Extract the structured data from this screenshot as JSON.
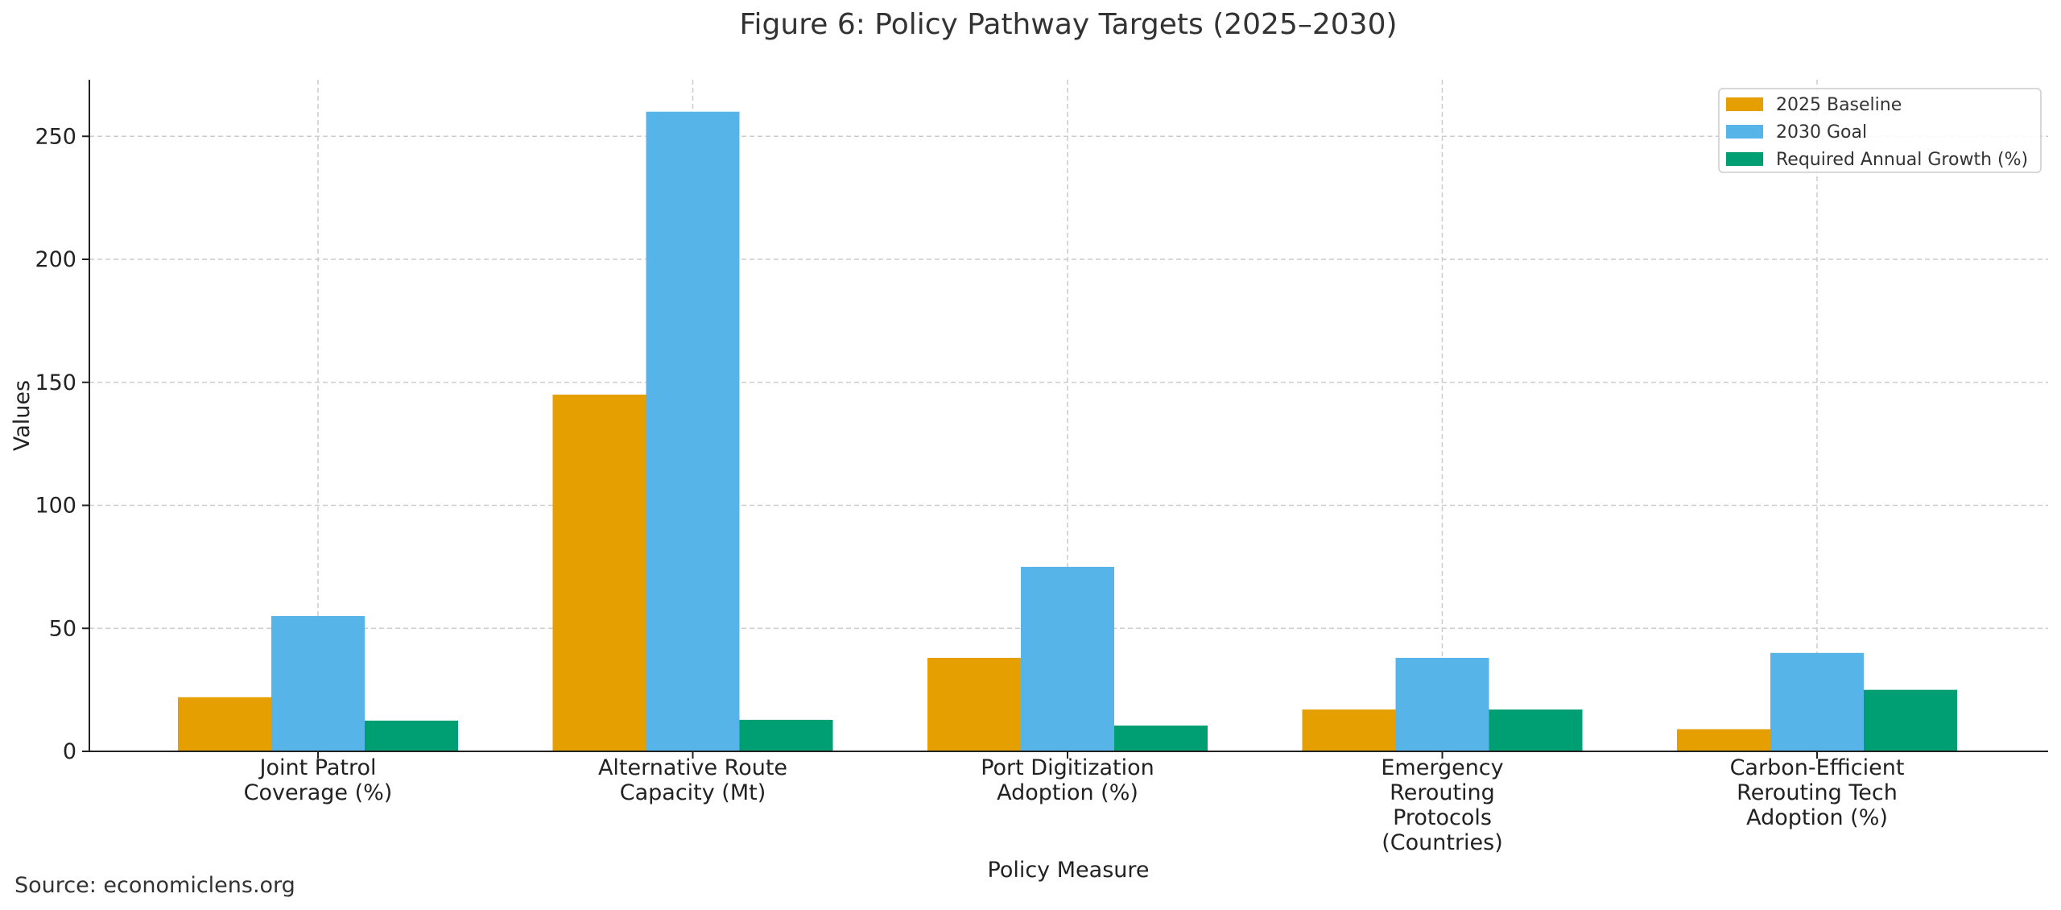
{
  "chart_data": {
    "type": "bar",
    "title": "Figure 6: Policy Pathway Targets (2025–2030)",
    "xlabel": "Policy Measure",
    "ylabel": "Values",
    "ylim": [
      0,
      273
    ],
    "yticks": [
      0,
      50,
      100,
      150,
      200,
      250
    ],
    "grid": true,
    "legend_position": "top-right",
    "categories": [
      [
        "Joint Patrol",
        "Coverage (%)"
      ],
      [
        "Alternative Route",
        "Capacity (Mt)"
      ],
      [
        "Port Digitization",
        "Adoption (%)"
      ],
      [
        "Emergency",
        "Rerouting",
        "Protocols",
        "(Countries)"
      ],
      [
        "Carbon-Efficient",
        "Rerouting Tech",
        "Adoption (%)"
      ]
    ],
    "series": [
      {
        "name": "2025 Baseline",
        "color": "#E69F00",
        "values": [
          22,
          145,
          38,
          17,
          9
        ]
      },
      {
        "name": "2030 Goal",
        "color": "#56B4E9",
        "values": [
          55,
          260,
          75,
          38,
          40
        ]
      },
      {
        "name": "Required Annual Growth (%)",
        "color": "#009E73",
        "values": [
          12.5,
          12.8,
          10.5,
          17.0,
          25.0
        ]
      }
    ],
    "source": "Source: economiclens.org"
  }
}
